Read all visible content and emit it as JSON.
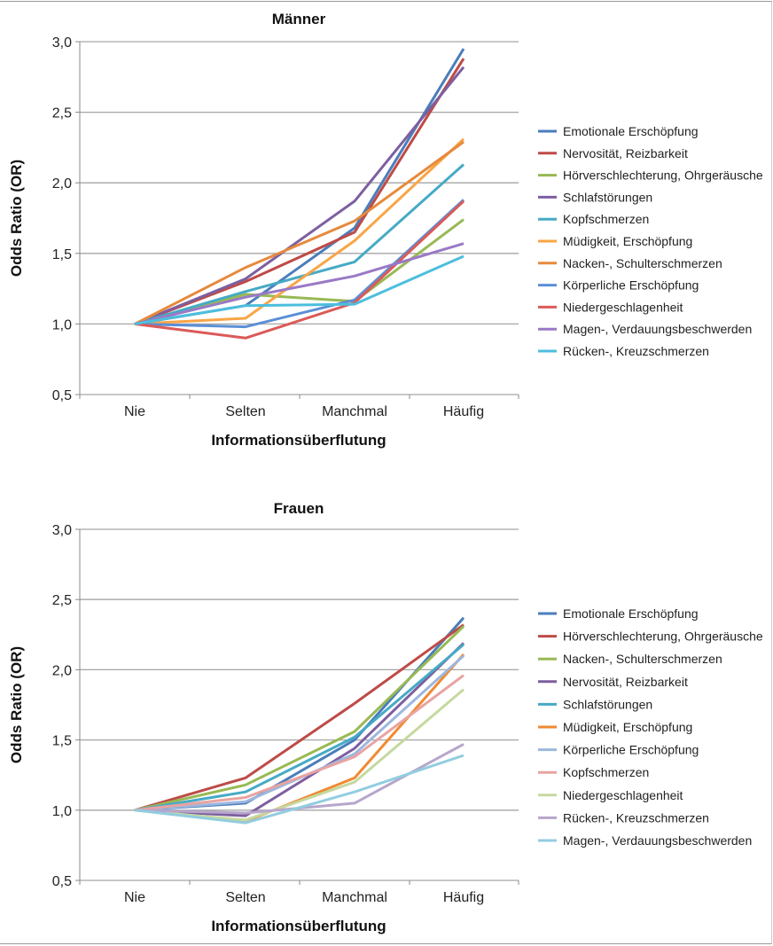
{
  "chart_data": [
    {
      "type": "line",
      "title": "Männer",
      "xlabel": "Informationsüberflutung",
      "ylabel": "Odds Ratio (OR)",
      "categories": [
        "Nie",
        "Selten",
        "Manchmal",
        "Häufig"
      ],
      "ylim": [
        0.5,
        3.0
      ],
      "yticks": [
        "0,5",
        "1,0",
        "1,5",
        "2,0",
        "2,5",
        "3,0"
      ],
      "grid": true,
      "legend": "right",
      "series": [
        {
          "name": "Emotionale Erschöpfung",
          "color": "#4A7EBB",
          "values": [
            1.0,
            1.13,
            1.68,
            2.95
          ]
        },
        {
          "name": "Nervosität, Reizbarkeit",
          "color": "#BE4B48",
          "values": [
            1.0,
            1.3,
            1.65,
            2.88
          ]
        },
        {
          "name": "Hörverschlechterung, Ohrgeräusche",
          "color": "#98B954",
          "values": [
            1.0,
            1.21,
            1.16,
            1.74
          ]
        },
        {
          "name": "Schlafstörungen",
          "color": "#7D5FA0",
          "values": [
            1.0,
            1.32,
            1.87,
            2.82
          ]
        },
        {
          "name": "Kopfschmerzen",
          "color": "#46AAC5",
          "values": [
            1.0,
            1.23,
            1.44,
            2.13
          ]
        },
        {
          "name": "Müdigkeit, Erschöpfung",
          "color": "#F9A546",
          "values": [
            1.0,
            1.04,
            1.59,
            2.31
          ]
        },
        {
          "name": "Nacken-, Schulterschmerzen",
          "color": "#E68A3C",
          "values": [
            1.0,
            1.4,
            1.73,
            2.29
          ]
        },
        {
          "name": "Körperliche Erschöpfung",
          "color": "#5B8FD6",
          "values": [
            1.0,
            0.98,
            1.17,
            1.88
          ]
        },
        {
          "name": "Niedergeschlagenheit",
          "color": "#DB5A58",
          "values": [
            1.0,
            0.9,
            1.15,
            1.87
          ]
        },
        {
          "name": "Magen-, Verdauungsbeschwerden",
          "color": "#9A79C6",
          "values": [
            1.0,
            1.19,
            1.34,
            1.57
          ]
        },
        {
          "name": "Rücken-, Kreuzschmerzen",
          "color": "#4CBEDD",
          "values": [
            1.0,
            1.13,
            1.14,
            1.48
          ]
        }
      ]
    },
    {
      "type": "line",
      "title": "Frauen",
      "xlabel": "Informationsüberflutung",
      "ylabel": "Odds Ratio (OR)",
      "categories": [
        "Nie",
        "Selten",
        "Manchmal",
        "Häufig"
      ],
      "ylim": [
        0.5,
        3.0
      ],
      "yticks": [
        "0,5",
        "1,0",
        "1,5",
        "2,0",
        "2,5",
        "3,0"
      ],
      "grid": true,
      "legend": "right",
      "series": [
        {
          "name": "Emotionale Erschöpfung",
          "color": "#4A7EBB",
          "values": [
            1.0,
            1.05,
            1.5,
            2.37
          ]
        },
        {
          "name": "Hörverschlechterung, Ohrgeräusche",
          "color": "#BE4B48",
          "values": [
            1.0,
            1.23,
            1.76,
            2.32
          ]
        },
        {
          "name": "Nacken-, Schulterschmerzen",
          "color": "#98B954",
          "values": [
            1.0,
            1.18,
            1.56,
            2.31
          ]
        },
        {
          "name": "Nervosität, Reizbarkeit",
          "color": "#7D5FA0",
          "values": [
            1.0,
            0.96,
            1.44,
            2.19
          ]
        },
        {
          "name": "Schlafstörungen",
          "color": "#46AAC5",
          "values": [
            1.0,
            1.13,
            1.52,
            2.18
          ]
        },
        {
          "name": "Müdigkeit, Erschöpfung",
          "color": "#F08A32",
          "values": [
            1.0,
            0.92,
            1.23,
            2.11
          ]
        },
        {
          "name": "Körperliche Erschöpfung",
          "color": "#9DB7DE",
          "values": [
            1.0,
            1.06,
            1.4,
            2.1
          ]
        },
        {
          "name": "Kopfschmerzen",
          "color": "#E8A3A1",
          "values": [
            1.0,
            1.09,
            1.38,
            1.96
          ]
        },
        {
          "name": "Niedergeschlagenheit",
          "color": "#C5D9A0",
          "values": [
            1.0,
            0.93,
            1.2,
            1.86
          ]
        },
        {
          "name": "Rücken-, Kreuzschmerzen",
          "color": "#B7A6CC",
          "values": [
            1.0,
            0.98,
            1.05,
            1.47
          ]
        },
        {
          "name": "Magen-, Verdauungsbeschwerden",
          "color": "#92CDE0",
          "values": [
            1.0,
            0.91,
            1.13,
            1.39
          ]
        }
      ]
    }
  ]
}
